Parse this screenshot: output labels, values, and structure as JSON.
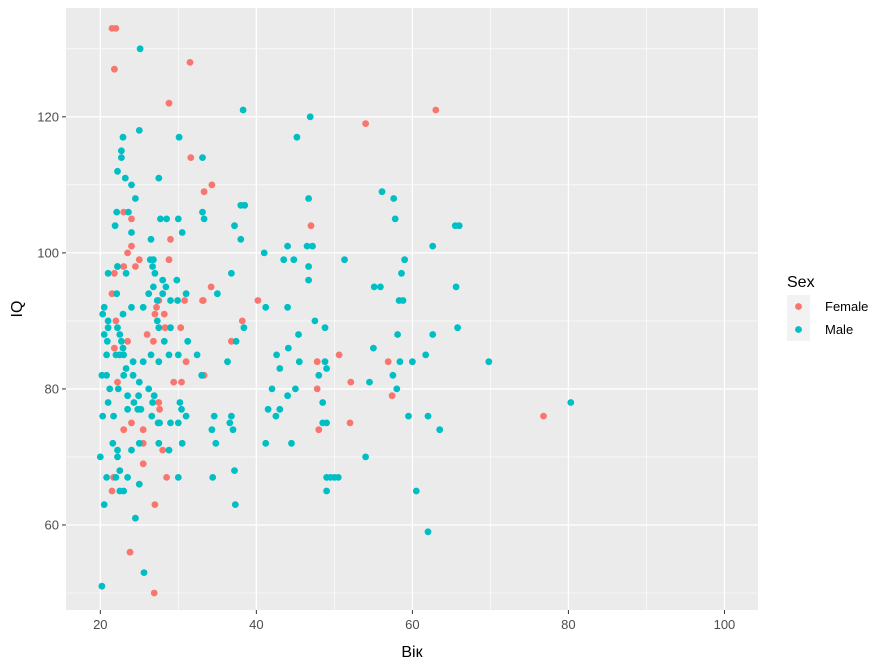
{
  "chart_data": {
    "type": "scatter",
    "title": "",
    "xlabel": "Вік",
    "ylabel": "IQ",
    "xlim": [
      15.6,
      104.3
    ],
    "ylim": [
      47.5,
      136.0
    ],
    "x_ticks": [
      20,
      40,
      60,
      80,
      100
    ],
    "y_ticks": [
      60,
      80,
      100,
      120
    ],
    "x_tick_labels": [
      "20",
      "40",
      "60",
      "80",
      "100"
    ],
    "y_tick_labels": [
      "60",
      "80",
      "100",
      "120"
    ],
    "grid": true,
    "background": "#ebebeb",
    "legend": {
      "title": "Sex",
      "position": "right"
    },
    "series": [
      {
        "name": "Female",
        "color": "#F8766D",
        "points": [
          [
            21.5,
            133
          ],
          [
            22.0,
            133
          ],
          [
            21.8,
            127
          ],
          [
            31.5,
            128
          ],
          [
            28.8,
            122
          ],
          [
            54.0,
            119
          ],
          [
            63.0,
            121
          ],
          [
            31.6,
            114
          ],
          [
            34.3,
            110
          ],
          [
            33.3,
            109
          ],
          [
            23.0,
            106
          ],
          [
            24.0,
            105
          ],
          [
            29.0,
            102
          ],
          [
            24.0,
            101
          ],
          [
            33.1,
            93
          ],
          [
            21.8,
            97
          ],
          [
            23.5,
            100
          ],
          [
            25.0,
            99
          ],
          [
            24.5,
            98
          ],
          [
            23.0,
            98
          ],
          [
            22.2,
            98
          ],
          [
            21.5,
            94
          ],
          [
            28.8,
            99
          ],
          [
            27.5,
            93
          ],
          [
            27.2,
            92
          ],
          [
            27.0,
            91
          ],
          [
            28.2,
            91
          ],
          [
            28.3,
            89
          ],
          [
            30.3,
            89
          ],
          [
            30.8,
            93
          ],
          [
            34.2,
            95
          ],
          [
            33.2,
            93
          ],
          [
            38.2,
            90
          ],
          [
            40.2,
            93
          ],
          [
            36.8,
            87
          ],
          [
            26.8,
            87
          ],
          [
            31.0,
            84
          ],
          [
            33.3,
            82
          ],
          [
            47.8,
            84
          ],
          [
            50.6,
            85
          ],
          [
            47.8,
            80
          ],
          [
            52.1,
            81
          ],
          [
            56.9,
            84
          ],
          [
            57.4,
            79
          ],
          [
            47.0,
            104
          ],
          [
            22.0,
            90
          ],
          [
            21.8,
            86
          ],
          [
            22.5,
            85
          ],
          [
            23.5,
            87
          ],
          [
            26.0,
            88
          ],
          [
            22.2,
            81
          ],
          [
            23.0,
            74
          ],
          [
            24.0,
            75
          ],
          [
            25.5,
            74
          ],
          [
            25.5,
            69
          ],
          [
            25.5,
            72
          ],
          [
            27.5,
            78
          ],
          [
            27.6,
            77
          ],
          [
            28.0,
            71
          ],
          [
            28.5,
            67
          ],
          [
            29.4,
            81
          ],
          [
            30.4,
            81
          ],
          [
            48.0,
            74
          ],
          [
            52.0,
            75
          ],
          [
            21.7,
            67
          ],
          [
            21.5,
            65
          ],
          [
            27.0,
            63
          ],
          [
            23.8,
            56
          ],
          [
            26.9,
            50
          ],
          [
            76.8,
            76
          ]
        ]
      },
      {
        "name": "Male",
        "color": "#00BFC4",
        "points": [
          [
            25.1,
            130
          ],
          [
            38.3,
            121
          ],
          [
            46.9,
            120
          ],
          [
            25.0,
            118
          ],
          [
            22.9,
            117
          ],
          [
            30.1,
            117
          ],
          [
            45.2,
            117
          ],
          [
            22.7,
            115
          ],
          [
            22.7,
            114
          ],
          [
            33.1,
            114
          ],
          [
            23.2,
            111
          ],
          [
            22.2,
            112
          ],
          [
            24.0,
            110
          ],
          [
            24.5,
            108
          ],
          [
            27.5,
            111
          ],
          [
            56.1,
            109
          ],
          [
            57.6,
            108
          ],
          [
            46.7,
            108
          ],
          [
            38.0,
            107
          ],
          [
            38.5,
            107
          ],
          [
            37.2,
            104
          ],
          [
            33.1,
            106
          ],
          [
            33.3,
            105
          ],
          [
            30.0,
            105
          ],
          [
            27.7,
            105
          ],
          [
            28.5,
            105
          ],
          [
            22.1,
            106
          ],
          [
            23.6,
            106
          ],
          [
            24.0,
            103
          ],
          [
            21.9,
            104
          ],
          [
            26.5,
            102
          ],
          [
            30.5,
            103
          ],
          [
            38.0,
            102
          ],
          [
            41.0,
            100
          ],
          [
            44.0,
            101
          ],
          [
            46.5,
            101
          ],
          [
            47.2,
            101
          ],
          [
            51.3,
            99
          ],
          [
            43.5,
            99
          ],
          [
            44.8,
            99
          ],
          [
            46.7,
            98
          ],
          [
            46.7,
            96
          ],
          [
            36.8,
            97
          ],
          [
            58.6,
            97
          ],
          [
            59.0,
            99
          ],
          [
            62.6,
            101
          ],
          [
            65.5,
            104
          ],
          [
            66.0,
            104
          ],
          [
            57.8,
            105
          ],
          [
            21.0,
            97
          ],
          [
            23.3,
            97
          ],
          [
            22.2,
            98
          ],
          [
            26.8,
            99
          ],
          [
            26.4,
            99
          ],
          [
            26.7,
            98
          ],
          [
            27.0,
            97
          ],
          [
            28.0,
            96
          ],
          [
            29.8,
            96
          ],
          [
            26.2,
            94
          ],
          [
            26.8,
            95
          ],
          [
            28.0,
            94
          ],
          [
            29.0,
            93
          ],
          [
            31.0,
            94
          ],
          [
            35.0,
            94
          ],
          [
            29.9,
            93
          ],
          [
            28.4,
            95
          ],
          [
            27.3,
            93
          ],
          [
            27.3,
            90
          ],
          [
            27.5,
            89
          ],
          [
            29.0,
            89
          ],
          [
            28.2,
            87
          ],
          [
            25.5,
            92
          ],
          [
            24.0,
            92
          ],
          [
            22.1,
            94
          ],
          [
            22.9,
            91
          ],
          [
            20.5,
            92
          ],
          [
            20.3,
            91
          ],
          [
            21.0,
            90
          ],
          [
            21.0,
            89
          ],
          [
            20.5,
            88
          ],
          [
            20.9,
            87
          ],
          [
            22.2,
            89
          ],
          [
            22.5,
            88
          ],
          [
            22.7,
            87
          ],
          [
            22.9,
            86
          ],
          [
            22.5,
            85
          ],
          [
            20.8,
            85
          ],
          [
            22.0,
            85
          ],
          [
            23.0,
            85
          ],
          [
            23.3,
            83
          ],
          [
            24.2,
            84
          ],
          [
            24.2,
            82
          ],
          [
            25.5,
            84
          ],
          [
            26.5,
            85
          ],
          [
            27.5,
            84
          ],
          [
            28.8,
            85
          ],
          [
            30.0,
            85
          ],
          [
            31.2,
            87
          ],
          [
            32.4,
            85
          ],
          [
            37.4,
            87
          ],
          [
            36.3,
            84
          ],
          [
            38.4,
            89
          ],
          [
            41.2,
            92
          ],
          [
            42.6,
            85
          ],
          [
            43.0,
            83
          ],
          [
            44.1,
            86
          ],
          [
            45.4,
            88
          ],
          [
            44.0,
            92
          ],
          [
            47.5,
            90
          ],
          [
            48.8,
            89
          ],
          [
            48.8,
            84
          ],
          [
            48.0,
            82
          ],
          [
            49.0,
            83
          ],
          [
            55.0,
            86
          ],
          [
            55.1,
            95
          ],
          [
            55.9,
            95
          ],
          [
            58.3,
            93
          ],
          [
            58.8,
            93
          ],
          [
            57.5,
            82
          ],
          [
            58.0,
            80
          ],
          [
            58.1,
            88
          ],
          [
            58.4,
            84
          ],
          [
            60.0,
            84
          ],
          [
            62.6,
            88
          ],
          [
            65.8,
            89
          ],
          [
            65.6,
            95
          ],
          [
            69.8,
            84
          ],
          [
            61.7,
            85
          ],
          [
            20.2,
            82
          ],
          [
            20.8,
            82
          ],
          [
            21.2,
            80
          ],
          [
            21.0,
            78
          ],
          [
            22.3,
            80
          ],
          [
            23.5,
            79
          ],
          [
            23.5,
            77
          ],
          [
            23.0,
            82
          ],
          [
            25.0,
            81
          ],
          [
            25.2,
            77
          ],
          [
            26.2,
            80
          ],
          [
            24.3,
            78
          ],
          [
            24.9,
            79
          ],
          [
            26.9,
            79
          ],
          [
            27.6,
            75
          ],
          [
            27.4,
            75
          ],
          [
            27.5,
            72
          ],
          [
            29.0,
            75
          ],
          [
            30.0,
            75
          ],
          [
            31.0,
            76
          ],
          [
            30.5,
            72
          ],
          [
            33.0,
            82
          ],
          [
            36.8,
            76
          ],
          [
            36.6,
            75
          ],
          [
            34.6,
            76
          ],
          [
            34.3,
            74
          ],
          [
            37.0,
            74
          ],
          [
            42.0,
            80
          ],
          [
            42.5,
            76
          ],
          [
            41.5,
            77
          ],
          [
            43.0,
            77
          ],
          [
            44.0,
            79
          ],
          [
            45.0,
            80
          ],
          [
            45.5,
            84
          ],
          [
            48.5,
            78
          ],
          [
            49.0,
            75
          ],
          [
            48.5,
            75
          ],
          [
            49.0,
            67
          ],
          [
            49.5,
            67
          ],
          [
            50.0,
            67
          ],
          [
            50.5,
            67
          ],
          [
            49.0,
            65
          ],
          [
            54.0,
            70
          ],
          [
            54.5,
            81
          ],
          [
            59.5,
            76
          ],
          [
            62.0,
            76
          ],
          [
            63.5,
            74
          ],
          [
            60.5,
            65
          ],
          [
            62.0,
            59
          ],
          [
            80.3,
            78
          ],
          [
            20.3,
            76
          ],
          [
            21.7,
            76
          ],
          [
            21.6,
            72
          ],
          [
            22.2,
            71
          ],
          [
            22.2,
            70
          ],
          [
            22.0,
            67
          ],
          [
            22.5,
            68
          ],
          [
            24.0,
            71
          ],
          [
            25.0,
            72
          ],
          [
            25.0,
            66
          ],
          [
            23.5,
            67
          ],
          [
            22.5,
            65
          ],
          [
            23.0,
            65
          ],
          [
            24.8,
            77
          ],
          [
            26.6,
            76
          ],
          [
            26.7,
            78
          ],
          [
            28.8,
            71
          ],
          [
            30.0,
            67
          ],
          [
            30.4,
            77
          ],
          [
            30.2,
            78
          ],
          [
            34.4,
            67
          ],
          [
            37.2,
            68
          ],
          [
            37.3,
            63
          ],
          [
            20.0,
            70
          ],
          [
            20.5,
            63
          ],
          [
            20.8,
            67
          ],
          [
            24.5,
            61
          ],
          [
            25.6,
            53
          ],
          [
            20.2,
            51
          ],
          [
            41.2,
            72
          ],
          [
            44.5,
            72
          ],
          [
            34.8,
            72
          ]
        ]
      }
    ]
  }
}
